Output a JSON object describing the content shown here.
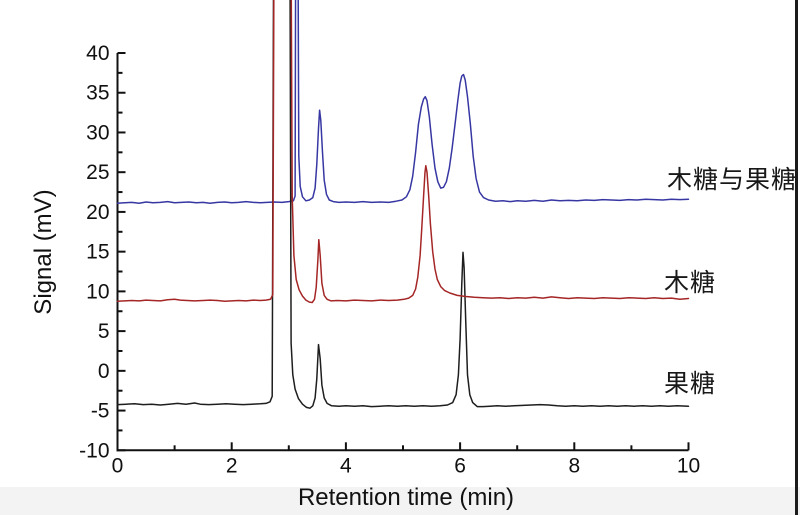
{
  "figure": {
    "background_color": "#ffffff",
    "right_border_color": "#1b1b1b",
    "bottom_strip_color": "#f3f3f3",
    "axis_color": "#111111"
  },
  "chart_data": {
    "type": "line",
    "title": "",
    "xlabel": "Retention time (min)",
    "ylabel": "Signal (mV)",
    "xlim": [
      0,
      10
    ],
    "ylim": [
      -10,
      40
    ],
    "grid": false,
    "x_major_ticks": [
      0,
      2,
      4,
      6,
      8,
      10
    ],
    "x_minor_ticks": [
      1,
      3,
      5,
      7,
      9
    ],
    "y_major_ticks": [
      -10,
      -5,
      0,
      5,
      10,
      15,
      20,
      25,
      30,
      35,
      40
    ],
    "y_minor_ticks": [
      -7.5,
      -2.5,
      2.5,
      7.5,
      12.5,
      17.5,
      22.5,
      27.5,
      32.5,
      37.5
    ],
    "legend_position": "labels-right-inside",
    "series": [
      {
        "id": "fructose",
        "name": "果糖",
        "color": "#1e1e1e",
        "baseline_mV": -4.2,
        "peaks": [
          {
            "t_min": 2.85,
            "clipped": true
          },
          {
            "t_min": 3.52,
            "height_mV": 3.3
          },
          {
            "t_min": 6.05,
            "height_mV": 14.9
          }
        ],
        "points": [
          [
            0,
            -4.25
          ],
          [
            0.15,
            -4.2
          ],
          [
            0.3,
            -4.15
          ],
          [
            0.45,
            -4.25
          ],
          [
            0.6,
            -4.2
          ],
          [
            0.75,
            -4.3
          ],
          [
            0.9,
            -4.2
          ],
          [
            1.05,
            -4.1
          ],
          [
            1.2,
            -4.2
          ],
          [
            1.35,
            -4.05
          ],
          [
            1.45,
            -4.2
          ],
          [
            1.6,
            -4.25
          ],
          [
            1.75,
            -4.2
          ],
          [
            1.9,
            -4.15
          ],
          [
            2.05,
            -4.2
          ],
          [
            2.2,
            -4.25
          ],
          [
            2.35,
            -4.2
          ],
          [
            2.5,
            -4.15
          ],
          [
            2.6,
            -4.1
          ],
          [
            2.67,
            -3.9
          ],
          [
            2.71,
            -3.2
          ],
          [
            2.737,
            60
          ],
          [
            3.018,
            60
          ],
          [
            3.04,
            3.5
          ],
          [
            3.07,
            -0.5
          ],
          [
            3.11,
            -2.3
          ],
          [
            3.17,
            -3.5
          ],
          [
            3.24,
            -4.2
          ],
          [
            3.31,
            -4.6
          ],
          [
            3.37,
            -4.7
          ],
          [
            3.42,
            -4.4
          ],
          [
            3.46,
            -3.4
          ],
          [
            3.49,
            -1.0
          ],
          [
            3.52,
            3.3
          ],
          [
            3.55,
            1.5
          ],
          [
            3.58,
            -1.8
          ],
          [
            3.62,
            -3.4
          ],
          [
            3.67,
            -4.1
          ],
          [
            3.75,
            -4.4
          ],
          [
            3.88,
            -4.45
          ],
          [
            4.0,
            -4.4
          ],
          [
            4.15,
            -4.45
          ],
          [
            4.3,
            -4.4
          ],
          [
            4.45,
            -4.5
          ],
          [
            4.6,
            -4.45
          ],
          [
            4.75,
            -4.4
          ],
          [
            4.9,
            -4.45
          ],
          [
            5.05,
            -4.4
          ],
          [
            5.2,
            -4.45
          ],
          [
            5.35,
            -4.4
          ],
          [
            5.5,
            -4.45
          ],
          [
            5.65,
            -4.4
          ],
          [
            5.78,
            -4.3
          ],
          [
            5.87,
            -4.0
          ],
          [
            5.93,
            -3.0
          ],
          [
            5.97,
            -0.5
          ],
          [
            6.0,
            4.0
          ],
          [
            6.03,
            11.0
          ],
          [
            6.05,
            14.9
          ],
          [
            6.07,
            13.0
          ],
          [
            6.1,
            6.0
          ],
          [
            6.13,
            -0.5
          ],
          [
            6.17,
            -3.0
          ],
          [
            6.22,
            -4.0
          ],
          [
            6.3,
            -4.5
          ],
          [
            6.4,
            -4.5
          ],
          [
            6.52,
            -4.45
          ],
          [
            6.65,
            -4.4
          ],
          [
            6.8,
            -4.45
          ],
          [
            6.95,
            -4.4
          ],
          [
            7.1,
            -4.35
          ],
          [
            7.25,
            -4.3
          ],
          [
            7.4,
            -4.25
          ],
          [
            7.55,
            -4.3
          ],
          [
            7.7,
            -4.4
          ],
          [
            7.85,
            -4.45
          ],
          [
            8.0,
            -4.4
          ],
          [
            8.15,
            -4.45
          ],
          [
            8.3,
            -4.4
          ],
          [
            8.45,
            -4.45
          ],
          [
            8.6,
            -4.4
          ],
          [
            8.75,
            -4.45
          ],
          [
            8.9,
            -4.4
          ],
          [
            9.05,
            -4.45
          ],
          [
            9.2,
            -4.4
          ],
          [
            9.35,
            -4.45
          ],
          [
            9.5,
            -4.4
          ],
          [
            9.65,
            -4.45
          ],
          [
            9.8,
            -4.4
          ],
          [
            10,
            -4.45
          ]
        ]
      },
      {
        "id": "xylose",
        "name": "木糖",
        "color": "#a52626",
        "baseline_mV": 8.8,
        "peaks": [
          {
            "t_min": 2.8,
            "clipped": true
          },
          {
            "t_min": 3.52,
            "height_mV": 16.5
          },
          {
            "t_min": 5.4,
            "height_mV": 25.8
          }
        ],
        "points": [
          [
            0,
            8.75
          ],
          [
            0.12,
            8.8
          ],
          [
            0.25,
            8.85
          ],
          [
            0.38,
            8.8
          ],
          [
            0.5,
            8.9
          ],
          [
            0.62,
            8.85
          ],
          [
            0.75,
            8.8
          ],
          [
            0.88,
            8.95
          ],
          [
            1.0,
            9.0
          ],
          [
            1.1,
            8.9
          ],
          [
            1.22,
            8.85
          ],
          [
            1.35,
            8.8
          ],
          [
            1.5,
            8.85
          ],
          [
            1.62,
            8.9
          ],
          [
            1.75,
            8.85
          ],
          [
            1.88,
            8.75
          ],
          [
            2.0,
            8.8
          ],
          [
            2.12,
            8.85
          ],
          [
            2.25,
            8.8
          ],
          [
            2.38,
            8.9
          ],
          [
            2.5,
            8.85
          ],
          [
            2.6,
            8.9
          ],
          [
            2.68,
            9.0
          ],
          [
            2.72,
            9.6
          ],
          [
            2.745,
            60
          ],
          [
            3.035,
            60
          ],
          [
            3.06,
            22.0
          ],
          [
            3.09,
            14.5
          ],
          [
            3.13,
            11.5
          ],
          [
            3.18,
            10.2
          ],
          [
            3.24,
            9.4
          ],
          [
            3.3,
            8.9
          ],
          [
            3.36,
            8.65
          ],
          [
            3.41,
            8.6
          ],
          [
            3.45,
            9.0
          ],
          [
            3.48,
            10.5
          ],
          [
            3.51,
            14.0
          ],
          [
            3.525,
            16.5
          ],
          [
            3.55,
            14.5
          ],
          [
            3.58,
            11.0
          ],
          [
            3.62,
            9.5
          ],
          [
            3.67,
            9.0
          ],
          [
            3.74,
            8.8
          ],
          [
            3.85,
            8.85
          ],
          [
            4.0,
            8.8
          ],
          [
            4.15,
            8.9
          ],
          [
            4.3,
            8.85
          ],
          [
            4.45,
            8.8
          ],
          [
            4.6,
            8.9
          ],
          [
            4.75,
            8.85
          ],
          [
            4.9,
            8.9
          ],
          [
            5.02,
            9.0
          ],
          [
            5.1,
            9.15
          ],
          [
            5.17,
            9.5
          ],
          [
            5.22,
            10.3
          ],
          [
            5.26,
            11.8
          ],
          [
            5.3,
            14.5
          ],
          [
            5.33,
            18.0
          ],
          [
            5.36,
            22.0
          ],
          [
            5.385,
            25.0
          ],
          [
            5.4,
            25.8
          ],
          [
            5.42,
            25.0
          ],
          [
            5.45,
            22.0
          ],
          [
            5.48,
            18.5
          ],
          [
            5.52,
            15.0
          ],
          [
            5.56,
            12.8
          ],
          [
            5.6,
            11.5
          ],
          [
            5.66,
            10.6
          ],
          [
            5.73,
            10.1
          ],
          [
            5.82,
            9.8
          ],
          [
            5.95,
            9.5
          ],
          [
            6.1,
            9.35
          ],
          [
            6.25,
            9.25
          ],
          [
            6.4,
            9.2
          ],
          [
            6.55,
            9.15
          ],
          [
            6.7,
            9.2
          ],
          [
            6.85,
            9.1
          ],
          [
            7.0,
            9.2
          ],
          [
            7.15,
            9.15
          ],
          [
            7.3,
            9.25
          ],
          [
            7.45,
            9.15
          ],
          [
            7.6,
            9.3
          ],
          [
            7.75,
            9.2
          ],
          [
            7.9,
            9.1
          ],
          [
            8.05,
            9.2
          ],
          [
            8.2,
            9.15
          ],
          [
            8.35,
            9.1
          ],
          [
            8.5,
            9.2
          ],
          [
            8.65,
            9.15
          ],
          [
            8.8,
            9.1
          ],
          [
            8.95,
            9.2
          ],
          [
            9.1,
            9.15
          ],
          [
            9.25,
            9.1
          ],
          [
            9.4,
            9.2
          ],
          [
            9.55,
            9.1
          ],
          [
            9.7,
            9.15
          ],
          [
            9.85,
            9.0
          ],
          [
            10,
            9.1
          ]
        ]
      },
      {
        "id": "xylose-and-fructose",
        "name": "木糖与果糖",
        "color": "#3737a3",
        "baseline_mV": 21.2,
        "peaks": [
          {
            "t_min": 3.14,
            "clipped": true
          },
          {
            "t_min": 3.54,
            "height_mV": 32.8
          },
          {
            "t_min": 5.39,
            "height_mV": 34.5
          },
          {
            "t_min": 6.06,
            "height_mV": 37.3
          }
        ],
        "points": [
          [
            0,
            21.1
          ],
          [
            0.12,
            21.15
          ],
          [
            0.25,
            21.2
          ],
          [
            0.38,
            21.1
          ],
          [
            0.5,
            21.25
          ],
          [
            0.62,
            21.15
          ],
          [
            0.75,
            21.2
          ],
          [
            0.88,
            21.3
          ],
          [
            1.0,
            21.15
          ],
          [
            1.12,
            21.2
          ],
          [
            1.25,
            21.25
          ],
          [
            1.38,
            21.15
          ],
          [
            1.5,
            21.2
          ],
          [
            1.62,
            21.1
          ],
          [
            1.75,
            21.2
          ],
          [
            1.88,
            21.25
          ],
          [
            2.0,
            21.15
          ],
          [
            2.12,
            21.2
          ],
          [
            2.25,
            21.3
          ],
          [
            2.38,
            21.2
          ],
          [
            2.5,
            21.15
          ],
          [
            2.62,
            21.2
          ],
          [
            2.75,
            21.25
          ],
          [
            2.88,
            21.2
          ],
          [
            3.0,
            21.3
          ],
          [
            3.08,
            21.4
          ],
          [
            3.11,
            22.0
          ],
          [
            3.123,
            60
          ],
          [
            3.158,
            60
          ],
          [
            3.175,
            27.0
          ],
          [
            3.2,
            23.2
          ],
          [
            3.24,
            21.9
          ],
          [
            3.3,
            21.4
          ],
          [
            3.36,
            21.5
          ],
          [
            3.42,
            21.8
          ],
          [
            3.46,
            23.0
          ],
          [
            3.49,
            26.0
          ],
          [
            3.52,
            30.5
          ],
          [
            3.54,
            32.8
          ],
          [
            3.56,
            31.5
          ],
          [
            3.59,
            27.5
          ],
          [
            3.62,
            24.0
          ],
          [
            3.66,
            22.2
          ],
          [
            3.71,
            21.5
          ],
          [
            3.78,
            21.3
          ],
          [
            3.88,
            21.2
          ],
          [
            4.0,
            21.25
          ],
          [
            4.15,
            21.2
          ],
          [
            4.3,
            21.3
          ],
          [
            4.45,
            21.2
          ],
          [
            4.6,
            21.25
          ],
          [
            4.75,
            21.2
          ],
          [
            4.88,
            21.35
          ],
          [
            4.98,
            21.5
          ],
          [
            5.06,
            21.9
          ],
          [
            5.12,
            22.8
          ],
          [
            5.17,
            24.5
          ],
          [
            5.22,
            27.5
          ],
          [
            5.27,
            31.0
          ],
          [
            5.32,
            33.2
          ],
          [
            5.36,
            34.2
          ],
          [
            5.39,
            34.5
          ],
          [
            5.42,
            34.0
          ],
          [
            5.46,
            32.0
          ],
          [
            5.51,
            28.5
          ],
          [
            5.56,
            25.5
          ],
          [
            5.61,
            23.8
          ],
          [
            5.66,
            23.0
          ],
          [
            5.71,
            23.1
          ],
          [
            5.76,
            23.8
          ],
          [
            5.81,
            25.5
          ],
          [
            5.86,
            28.0
          ],
          [
            5.91,
            31.0
          ],
          [
            5.96,
            34.0
          ],
          [
            6.0,
            36.2
          ],
          [
            6.03,
            37.1
          ],
          [
            6.06,
            37.3
          ],
          [
            6.09,
            36.6
          ],
          [
            6.13,
            34.5
          ],
          [
            6.18,
            31.0
          ],
          [
            6.23,
            27.0
          ],
          [
            6.28,
            24.2
          ],
          [
            6.34,
            22.5
          ],
          [
            6.41,
            21.8
          ],
          [
            6.5,
            21.5
          ],
          [
            6.62,
            21.35
          ],
          [
            6.75,
            21.4
          ],
          [
            6.88,
            21.3
          ],
          [
            7.0,
            21.4
          ],
          [
            7.15,
            21.35
          ],
          [
            7.3,
            21.45
          ],
          [
            7.45,
            21.35
          ],
          [
            7.6,
            21.5
          ],
          [
            7.75,
            21.4
          ],
          [
            7.9,
            21.45
          ],
          [
            8.05,
            21.4
          ],
          [
            8.2,
            21.5
          ],
          [
            8.35,
            21.45
          ],
          [
            8.5,
            21.55
          ],
          [
            8.65,
            21.5
          ],
          [
            8.8,
            21.45
          ],
          [
            8.95,
            21.55
          ],
          [
            9.1,
            21.5
          ],
          [
            9.25,
            21.6
          ],
          [
            9.4,
            21.55
          ],
          [
            9.55,
            21.5
          ],
          [
            9.7,
            21.6
          ],
          [
            9.85,
            21.55
          ],
          [
            10,
            21.6
          ]
        ]
      }
    ]
  }
}
